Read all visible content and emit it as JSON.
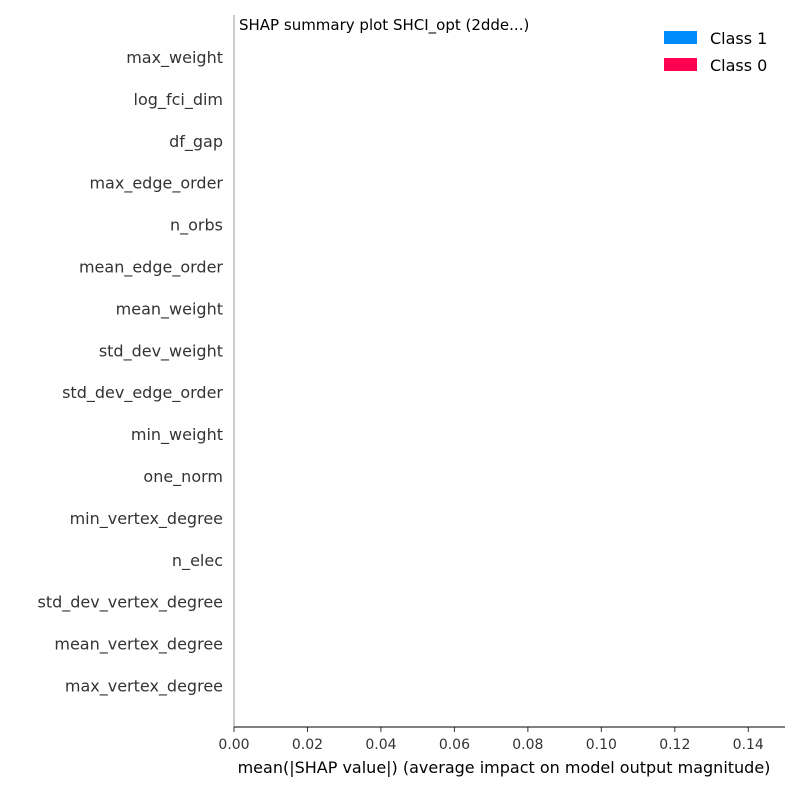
{
  "chart_data": {
    "type": "bar",
    "orientation": "horizontal",
    "title": "SHAP summary plot SHCI_opt (2dde...)",
    "xlabel": "mean(|SHAP value|) (average impact on model output magnitude)",
    "ylabel": "",
    "xlim": [
      0.0,
      0.15
    ],
    "xticks": [
      "0.00",
      "0.02",
      "0.04",
      "0.06",
      "0.08",
      "0.10",
      "0.12",
      "0.14"
    ],
    "xtick_values": [
      0.0,
      0.02,
      0.04,
      0.06,
      0.08,
      0.1,
      0.12,
      0.14
    ],
    "grid": false,
    "legend_position": "top-right",
    "categories": [
      "max_weight",
      "log_fci_dim",
      "df_gap",
      "max_edge_order",
      "n_orbs",
      "mean_edge_order",
      "mean_weight",
      "std_dev_weight",
      "std_dev_edge_order",
      "min_weight",
      "one_norm",
      "min_vertex_degree",
      "n_elec",
      "std_dev_vertex_degree",
      "mean_vertex_degree",
      "max_vertex_degree"
    ],
    "series": [
      {
        "name": "Class 1",
        "color": "#008bfb",
        "values": [
          0,
          0,
          0,
          0,
          0,
          0,
          0,
          0,
          0,
          0,
          0,
          0,
          0,
          0,
          0,
          0
        ]
      },
      {
        "name": "Class 0",
        "color": "#ff0051",
        "values": [
          0,
          0,
          0,
          0,
          0,
          0,
          0,
          0,
          0,
          0,
          0,
          0,
          0,
          0,
          0,
          0
        ]
      }
    ]
  }
}
